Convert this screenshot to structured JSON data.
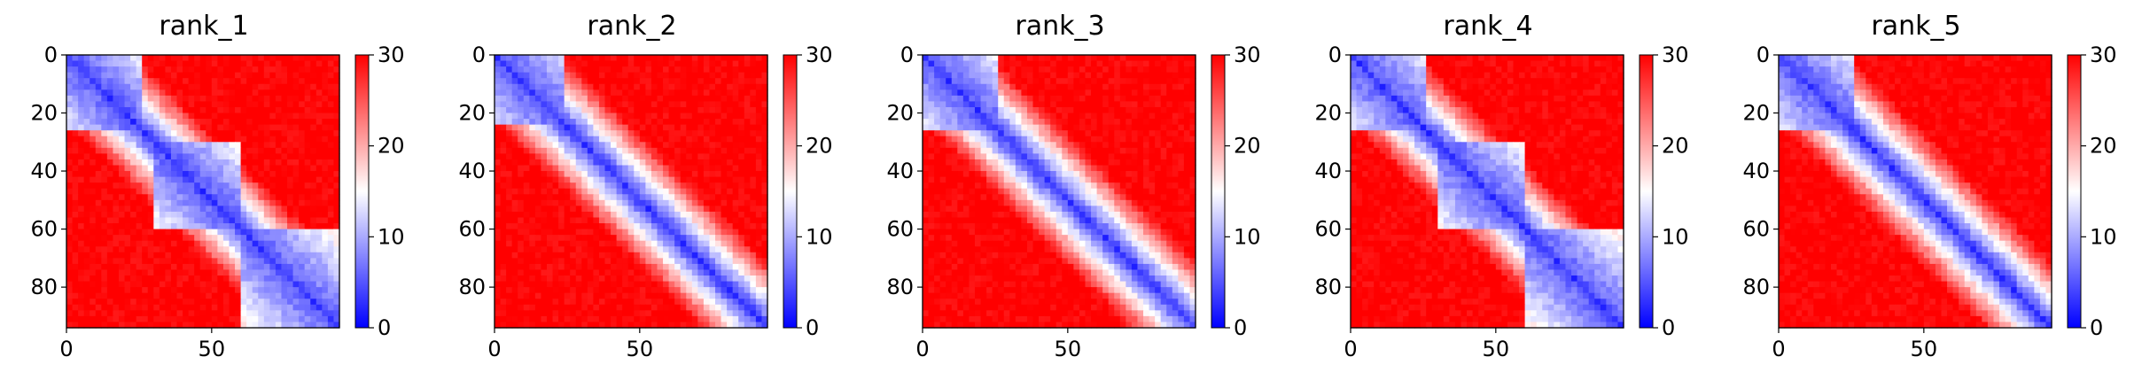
{
  "chart_data": [
    {
      "type": "heatmap",
      "title": "rank_1",
      "xticks": [
        0,
        50
      ],
      "yticks": [
        0,
        20,
        40,
        60,
        80
      ],
      "xlim": [
        0,
        94
      ],
      "ylim": [
        94,
        0
      ],
      "colorbar": {
        "ticks": [
          0,
          10,
          20,
          30
        ],
        "range": [
          0,
          30
        ],
        "colormap": "bwr"
      },
      "matrix_description": "distance map: low values (blue) along diagonal; block 0-25 low, rest high",
      "blocks": [
        [
          0,
          25
        ],
        [
          30,
          60
        ],
        [
          60,
          94
        ]
      ]
    },
    {
      "type": "heatmap",
      "title": "rank_2",
      "xticks": [
        0,
        50
      ],
      "yticks": [
        0,
        20,
        40,
        60,
        80
      ],
      "xlim": [
        0,
        94
      ],
      "ylim": [
        94,
        0
      ],
      "colorbar": {
        "ticks": [
          0,
          10,
          20,
          30
        ],
        "range": [
          0,
          30
        ],
        "colormap": "bwr"
      },
      "blocks": [
        [
          0,
          24
        ],
        [
          24,
          94
        ]
      ]
    },
    {
      "type": "heatmap",
      "title": "rank_3",
      "xticks": [
        0,
        50
      ],
      "yticks": [
        0,
        20,
        40,
        60,
        80
      ],
      "xlim": [
        0,
        94
      ],
      "ylim": [
        94,
        0
      ],
      "colorbar": {
        "ticks": [
          0,
          10,
          20,
          30
        ],
        "range": [
          0,
          30
        ],
        "colormap": "bwr"
      },
      "blocks": [
        [
          0,
          25
        ],
        [
          25,
          94
        ]
      ]
    },
    {
      "type": "heatmap",
      "title": "rank_4",
      "xticks": [
        0,
        50
      ],
      "yticks": [
        0,
        20,
        40,
        60,
        80
      ],
      "xlim": [
        0,
        94
      ],
      "ylim": [
        94,
        0
      ],
      "colorbar": {
        "ticks": [
          0,
          10,
          20,
          30
        ],
        "range": [
          0,
          30
        ],
        "colormap": "bwr"
      },
      "blocks": [
        [
          0,
          25
        ],
        [
          30,
          60
        ],
        [
          60,
          94
        ]
      ]
    },
    {
      "type": "heatmap",
      "title": "rank_5",
      "xticks": [
        0,
        50
      ],
      "yticks": [
        0,
        20,
        40,
        60,
        80
      ],
      "xlim": [
        0,
        94
      ],
      "ylim": [
        94,
        0
      ],
      "colorbar": {
        "ticks": [
          0,
          10,
          20,
          30
        ],
        "range": [
          0,
          30
        ],
        "colormap": "bwr"
      },
      "blocks": [
        [
          0,
          25
        ],
        [
          25,
          94
        ]
      ]
    }
  ]
}
